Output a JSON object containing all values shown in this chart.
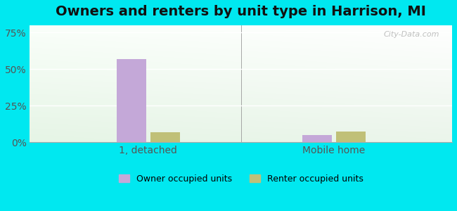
{
  "title": "Owners and renters by unit type in Harrison, MI",
  "categories": [
    "1, detached",
    "Mobile home"
  ],
  "owner_values": [
    57.0,
    5.0
  ],
  "renter_values": [
    7.0,
    7.5
  ],
  "owner_color": "#c4a8d8",
  "renter_color": "#c0c078",
  "yticks": [
    0,
    25,
    50,
    75
  ],
  "ytick_labels": [
    "0%",
    "25%",
    "50%",
    "75%"
  ],
  "ylim": [
    0,
    80
  ],
  "bar_width": 0.07,
  "group_centers": [
    0.28,
    0.72
  ],
  "outer_bg": "#00e8f0",
  "watermark": "City-Data.com",
  "legend_owner": "Owner occupied units",
  "legend_renter": "Renter occupied units",
  "title_fontsize": 14,
  "tick_fontsize": 10,
  "legend_fontsize": 9
}
